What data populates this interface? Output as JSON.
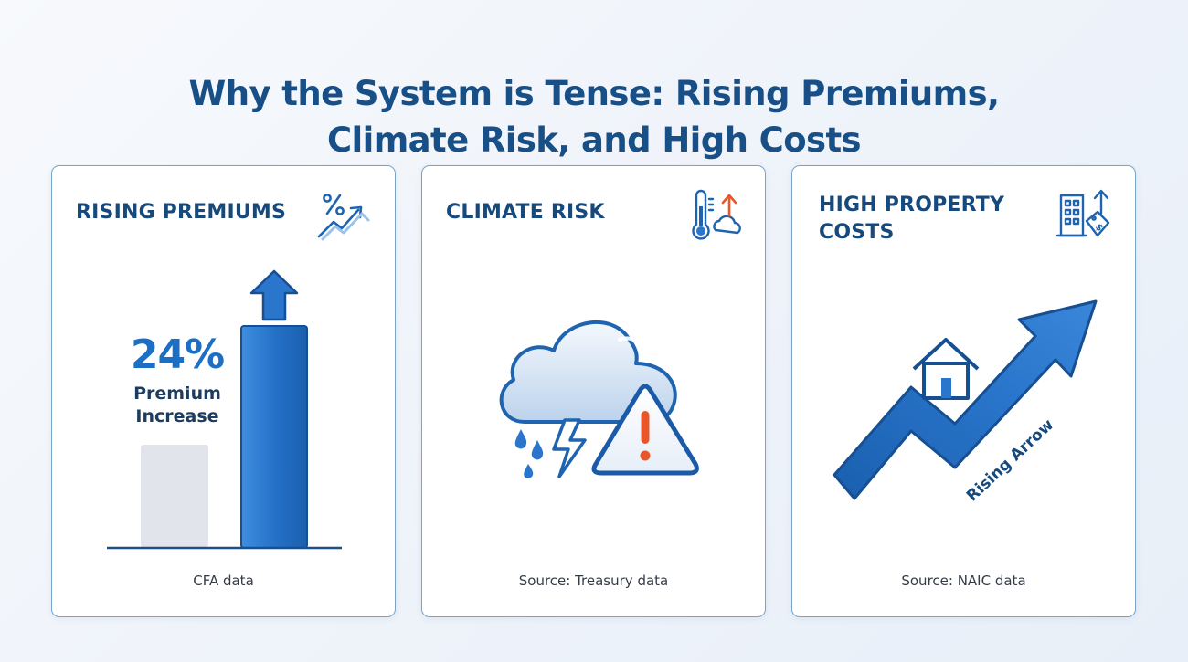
{
  "title": {
    "line1": "Why the System is Tense: Rising Premiums,",
    "line2": "Climate Risk, and High Costs"
  },
  "cards": [
    {
      "heading": "RISING PREMIUMS",
      "icon": "percent-trend-up-icon",
      "stat": "24%",
      "stat_caption_line1": "Premium",
      "stat_caption_line2": "Increase",
      "source": "CFA data"
    },
    {
      "heading": "CLIMATE RISK",
      "icon": "thermometer-cloud-icon",
      "illustration": "storm-cloud-warning-icon",
      "source": "Source: Treasury data"
    },
    {
      "heading_line1": "HIGH PROPERTY",
      "heading_line2": "COSTS",
      "icon": "building-price-tag-icon",
      "arrow_label": "Rising Arrow",
      "source": "Source: NAIC data"
    }
  ],
  "colors": {
    "title": "#174f86",
    "accent_blue": "#1c6fc4",
    "card_border": "#7aa3c8",
    "alert_orange": "#e8572a"
  }
}
